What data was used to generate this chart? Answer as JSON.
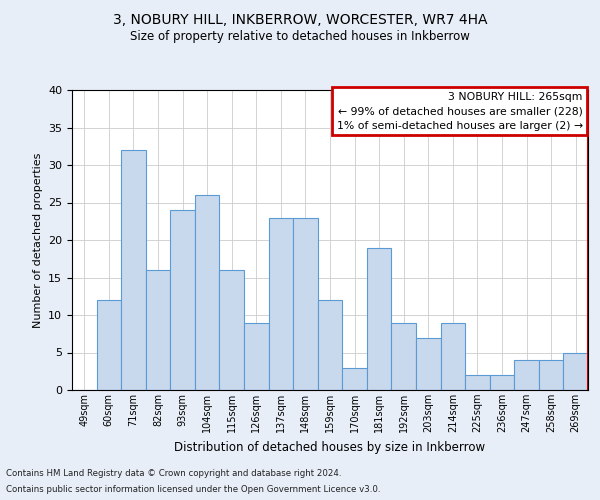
{
  "title": "3, NOBURY HILL, INKBERROW, WORCESTER, WR7 4HA",
  "subtitle": "Size of property relative to detached houses in Inkberrow",
  "xlabel": "Distribution of detached houses by size in Inkberrow",
  "ylabel": "Number of detached properties",
  "categories": [
    "49sqm",
    "60sqm",
    "71sqm",
    "82sqm",
    "93sqm",
    "104sqm",
    "115sqm",
    "126sqm",
    "137sqm",
    "148sqm",
    "159sqm",
    "170sqm",
    "181sqm",
    "192sqm",
    "203sqm",
    "214sqm",
    "225sqm",
    "236sqm",
    "247sqm",
    "258sqm",
    "269sqm"
  ],
  "values": [
    0,
    12,
    32,
    16,
    24,
    26,
    16,
    9,
    23,
    23,
    12,
    3,
    19,
    9,
    7,
    9,
    2,
    2,
    4,
    4,
    5
  ],
  "bar_color": "#c9d9ed",
  "bar_edge_color": "#5a9bd5",
  "annotation_box_color": "#cc0000",
  "annotation_text": "3 NOBURY HILL: 265sqm\n← 99% of detached houses are smaller (228)\n1% of semi-detached houses are larger (2) →",
  "ylim": [
    0,
    40
  ],
  "yticks": [
    0,
    5,
    10,
    15,
    20,
    25,
    30,
    35,
    40
  ],
  "footer_line1": "Contains HM Land Registry data © Crown copyright and database right 2024.",
  "footer_line2": "Contains public sector information licensed under the Open Government Licence v3.0.",
  "background_color": "#e8eef7",
  "plot_background": "#ffffff"
}
